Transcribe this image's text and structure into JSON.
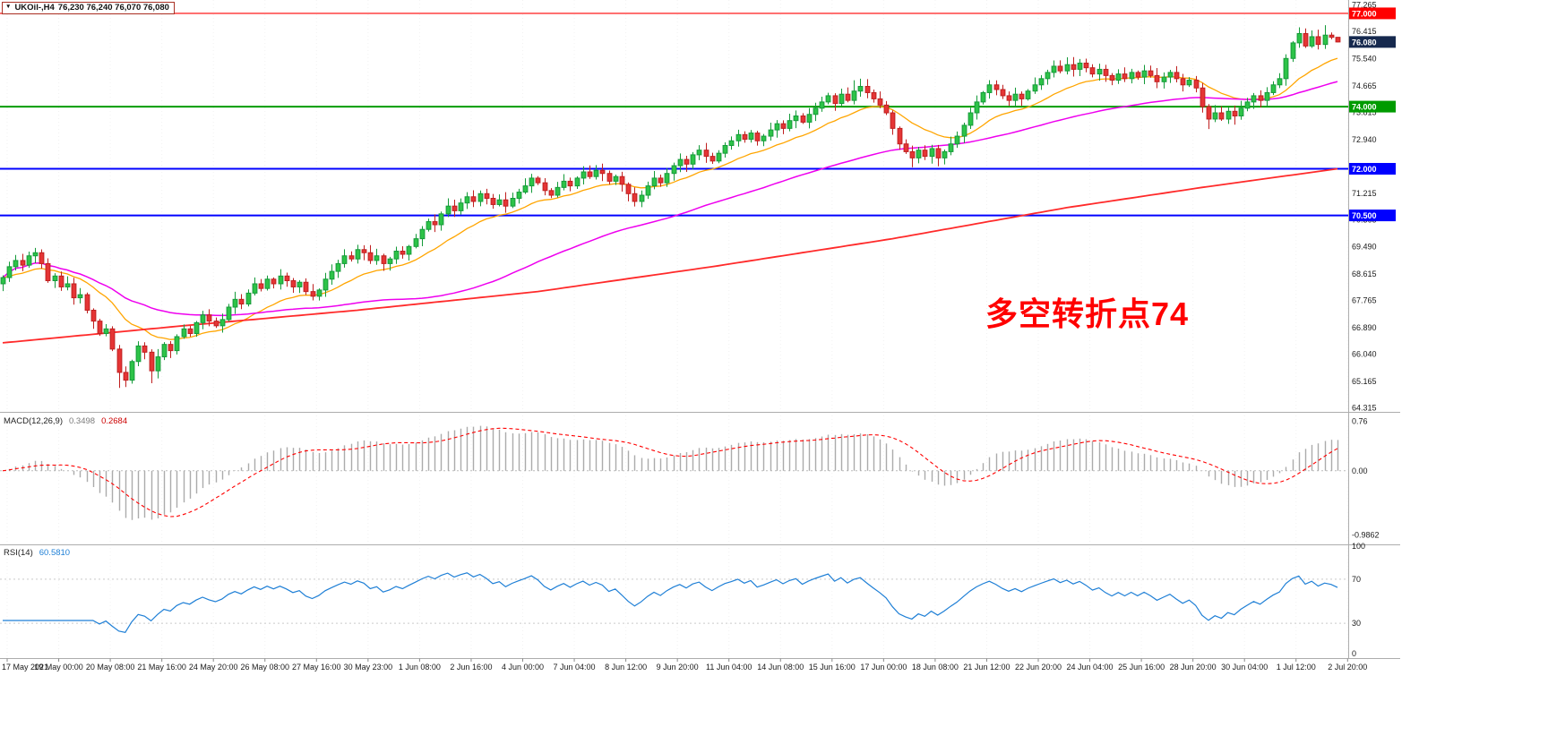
{
  "window": {
    "symbol_info": {
      "dropdown_icon": "▼",
      "symbol": "UKOil-,H4",
      "ohlc": "76,230 76,240 76,070 76,080"
    },
    "annotation": {
      "text": "多空转折点74",
      "color": "#FF0000"
    }
  },
  "colors": {
    "background": "#FFFFFF",
    "candle_up_fill": "#2DC348",
    "candle_up_stroke": "#149A39",
    "candle_down_fill": "#E53535",
    "candle_down_stroke": "#BF1F1F",
    "grid": "#F2F2F2",
    "separator": "#ADADAD",
    "axis_text": "#1A1A1A"
  },
  "chart_data": [
    {
      "type": "candlestick",
      "symbol": "UKOil-",
      "timeframe": "H4",
      "first_open": 68.3,
      "closes": [
        68.5,
        68.85,
        69.05,
        68.9,
        69.2,
        69.3,
        68.95,
        68.4,
        68.55,
        68.2,
        68.3,
        67.85,
        67.95,
        67.45,
        67.1,
        66.7,
        66.85,
        66.2,
        65.45,
        65.2,
        65.8,
        66.3,
        66.1,
        65.5,
        65.95,
        66.35,
        66.15,
        66.6,
        66.85,
        66.7,
        67.05,
        67.3,
        67.1,
        66.95,
        67.15,
        67.55,
        67.8,
        67.65,
        68.0,
        68.3,
        68.15,
        68.45,
        68.3,
        68.55,
        68.4,
        68.2,
        68.35,
        68.05,
        67.9,
        68.1,
        68.45,
        68.7,
        68.95,
        69.2,
        69.1,
        69.4,
        69.3,
        69.05,
        69.2,
        68.95,
        69.1,
        69.35,
        69.25,
        69.5,
        69.75,
        70.05,
        70.3,
        70.2,
        70.55,
        70.8,
        70.65,
        70.9,
        71.1,
        70.95,
        71.2,
        71.05,
        70.85,
        71.0,
        70.8,
        71.05,
        71.25,
        71.45,
        71.7,
        71.55,
        71.3,
        71.15,
        71.4,
        71.6,
        71.45,
        71.7,
        71.9,
        71.75,
        71.95,
        71.85,
        71.6,
        71.75,
        71.5,
        71.2,
        70.95,
        71.15,
        71.45,
        71.7,
        71.55,
        71.85,
        72.1,
        72.3,
        72.15,
        72.45,
        72.6,
        72.4,
        72.25,
        72.5,
        72.75,
        72.9,
        73.1,
        72.95,
        73.15,
        72.9,
        73.05,
        73.25,
        73.45,
        73.3,
        73.55,
        73.7,
        73.5,
        73.75,
        73.95,
        74.15,
        74.35,
        74.1,
        74.4,
        74.2,
        74.5,
        74.65,
        74.45,
        74.25,
        74.05,
        73.8,
        73.3,
        72.8,
        72.55,
        72.35,
        72.6,
        72.4,
        72.65,
        72.35,
        72.55,
        72.8,
        73.05,
        73.4,
        73.8,
        74.15,
        74.45,
        74.7,
        74.55,
        74.35,
        74.2,
        74.4,
        74.25,
        74.5,
        74.7,
        74.9,
        75.1,
        75.3,
        75.15,
        75.35,
        75.2,
        75.4,
        75.25,
        75.05,
        75.2,
        75.0,
        74.85,
        75.05,
        74.9,
        75.1,
        74.95,
        75.15,
        75.0,
        74.8,
        74.95,
        75.1,
        74.9,
        74.7,
        74.85,
        74.6,
        74.0,
        73.6,
        73.8,
        73.6,
        73.85,
        73.7,
        73.95,
        74.15,
        74.35,
        74.2,
        74.45,
        74.7,
        74.9,
        75.55,
        76.05,
        76.35,
        75.95,
        76.25,
        76.0,
        76.3,
        76.23,
        76.08
      ],
      "candle_overrides": {
        "18": {
          "low": 64.95
        },
        "19": {
          "low": 64.98
        },
        "23": {
          "low": 65.1
        },
        "132": {
          "high": 74.85
        },
        "141": {
          "low": 72.05
        },
        "145": {
          "low": 72.08
        },
        "187": {
          "low": 73.28
        },
        "191": {
          "low": 73.42
        },
        "201": {
          "high": 76.55
        },
        "203": {
          "high": 76.45
        },
        "205": {
          "high": 76.62
        },
        "207": {
          "open": 76.23,
          "high": 76.24,
          "low": 76.07,
          "close": 76.08
        }
      },
      "y_range": [
        64.18,
        77.43
      ],
      "y_axis_ticks": [
        "77.265",
        "76.415",
        "75.540",
        "74.665",
        "73.815",
        "72.940",
        "71.215",
        "70.365",
        "69.490",
        "68.615",
        "67.765",
        "66.890",
        "66.040",
        "65.165",
        "64.315"
      ],
      "x_labels": [
        "17 May 2021",
        "19 May 00:00",
        "20 May 08:00",
        "21 May 16:00",
        "24 May 20:00",
        "26 May 08:00",
        "27 May 16:00",
        "30 May 23:00",
        "1 Jun 08:00",
        "2 Jun 16:00",
        "4 Jun 00:00",
        "7 Jun 04:00",
        "8 Jun 12:00",
        "9 Jun 20:00",
        "11 Jun 04:00",
        "14 Jun 08:00",
        "15 Jun 16:00",
        "17 Jun 00:00",
        "18 Jun 08:00",
        "21 Jun 12:00",
        "22 Jun 20:00",
        "24 Jun 04:00",
        "25 Jun 16:00",
        "28 Jun 20:00",
        "30 Jun 04:00",
        "1 Jul 12:00",
        "2 Jul 20:00"
      ],
      "price_lines": [
        {
          "value": 77.0,
          "label": "77.000",
          "color": "#FF0000",
          "width": 1.2
        },
        {
          "value": 74.0,
          "label": "74.000",
          "color": "#009B00",
          "width": 2
        },
        {
          "value": 72.0,
          "label": "72.000",
          "color": "#0000FF",
          "width": 2
        },
        {
          "value": 70.5,
          "label": "70.500",
          "color": "#0000FF",
          "width": 2
        }
      ],
      "bid_label": {
        "value": 76.08,
        "label": "76.080",
        "box_color": "#16294E"
      },
      "moving_averages": [
        {
          "name": "fast",
          "method": "ema",
          "period": 16,
          "color": "#FFA500",
          "width": 1.3
        },
        {
          "name": "medium",
          "method": "sma",
          "period": 60,
          "color": "#EE00EE",
          "width": 1.5
        },
        {
          "name": "slow",
          "method": "anchors",
          "color": "#FF2A2A",
          "width": 1.8,
          "anchors": [
            [
              0,
              66.4
            ],
            [
              28,
              66.95
            ],
            [
              55,
              67.45
            ],
            [
              83,
              68.05
            ],
            [
              110,
              68.85
            ],
            [
              138,
              69.75
            ],
            [
              165,
              70.75
            ],
            [
              186,
              71.4
            ],
            [
              207,
              72.0
            ]
          ]
        }
      ]
    },
    {
      "type": "bar",
      "name": "MACD",
      "label": "MACD(12,26,9)",
      "value_main": "0.3498",
      "value_signal": "0.2684",
      "params": {
        "fast": 12,
        "slow": 26,
        "signal": 9
      },
      "y_range": [
        -1.12,
        0.88
      ],
      "y_ticks": [
        {
          "value": 0.76,
          "label": "0.76"
        },
        {
          "value": 0,
          "label": "0.00"
        },
        {
          "value": -0.9862,
          "label": "-0.9862"
        }
      ],
      "histogram_color": "#ABABAB",
      "signal_color": "#FF0000",
      "zero_line_color": "#BBBBBB"
    },
    {
      "type": "line",
      "name": "RSI",
      "label": "RSI(14)",
      "value": "60.5810",
      "params": {
        "period": 14
      },
      "y_range": [
        0,
        100
      ],
      "levels": [
        70,
        30
      ],
      "y_ticks": [
        {
          "value": 100,
          "label": "100"
        },
        {
          "value": 70,
          "label": "70"
        },
        {
          "value": 30,
          "label": "30"
        },
        {
          "value": 0,
          "label": "0"
        }
      ],
      "line_color": "#1E7FD6",
      "level_line_color": "#C9C9C9"
    }
  ]
}
